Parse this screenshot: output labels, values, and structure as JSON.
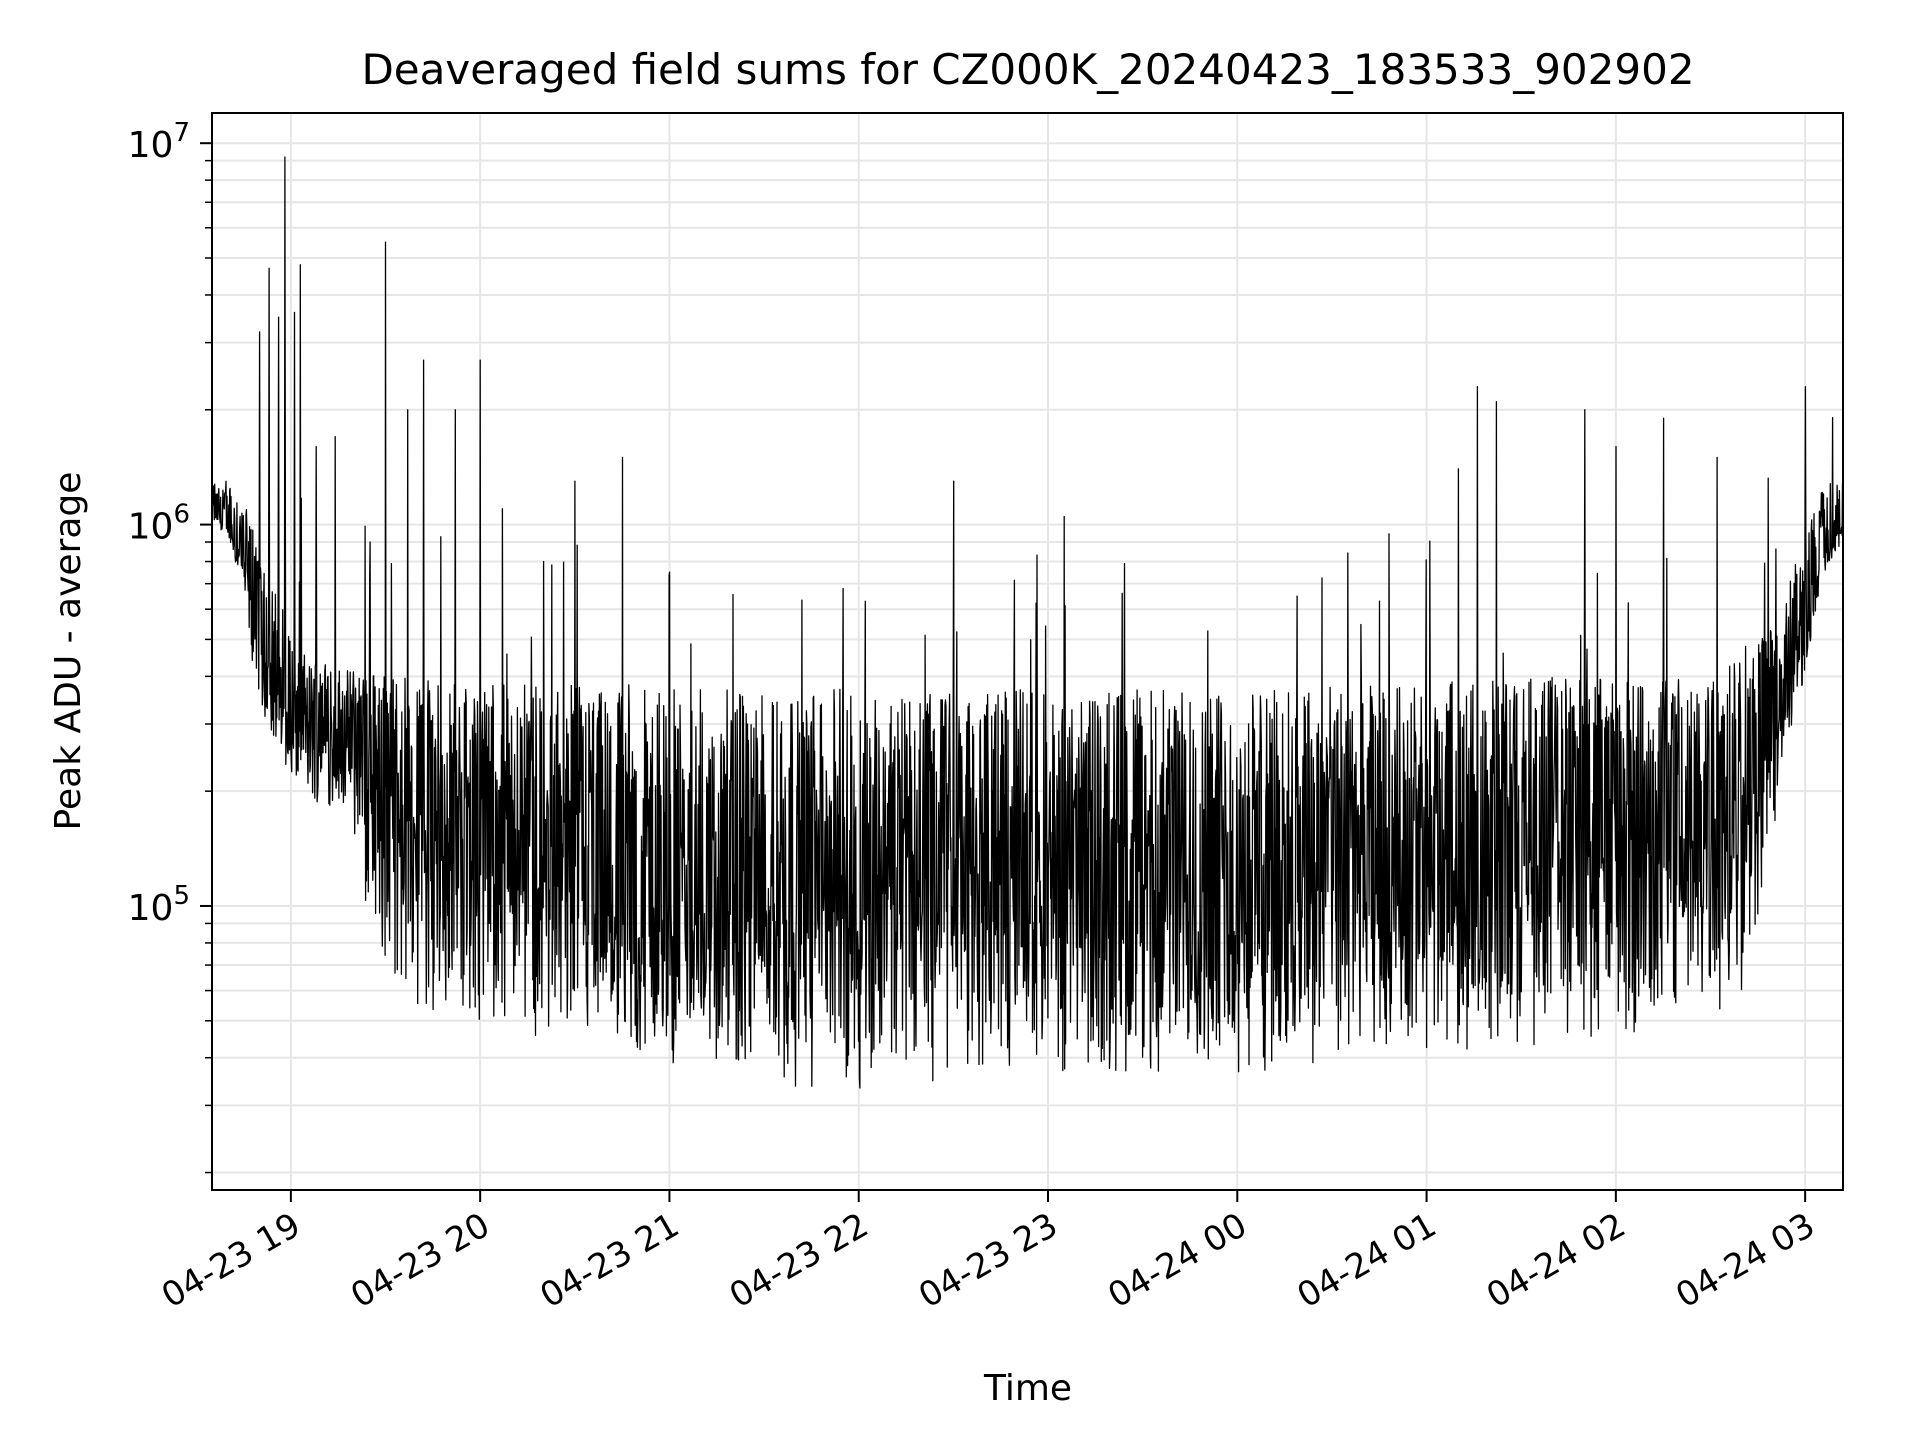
{
  "chart_data": {
    "type": "line",
    "title": "Deaveraged field sums for CZ000K_20240423_183533_902902",
    "xlabel": "Time",
    "ylabel": "Peak ADU - average",
    "y_scale": "log",
    "ylim": [
      18000,
      12000000
    ],
    "xlim": [
      "04-23 18:35",
      "04-24 03:12"
    ],
    "grid": true,
    "line_color": "#000000",
    "x_ticks": [
      {
        "label": "04-23 19",
        "t": "04-23 19:00"
      },
      {
        "label": "04-23 20",
        "t": "04-23 20:00"
      },
      {
        "label": "04-23 21",
        "t": "04-23 21:00"
      },
      {
        "label": "04-23 22",
        "t": "04-23 22:00"
      },
      {
        "label": "04-23 23",
        "t": "04-23 23:00"
      },
      {
        "label": "04-24 00",
        "t": "04-24 00:00"
      },
      {
        "label": "04-24 01",
        "t": "04-24 01:00"
      },
      {
        "label": "04-24 02",
        "t": "04-24 02:00"
      },
      {
        "label": "04-24 03",
        "t": "04-24 03:00"
      }
    ],
    "y_ticks": [
      {
        "base": "10",
        "exp": "5",
        "value": 100000
      },
      {
        "base": "10",
        "exp": "6",
        "value": 1000000
      },
      {
        "base": "10",
        "exp": "7",
        "value": 10000000
      }
    ],
    "series": [
      {
        "x": [
          "04-23 18:35",
          "04-23 18:40",
          "04-23 18:45",
          "04-23 18:48",
          "04-23 18:50",
          "04-23 18:52",
          "04-23 18:55",
          "04-23 18:58",
          "04-23 19:00",
          "04-23 19:05",
          "04-23 19:10",
          "04-23 19:15",
          "04-23 19:20",
          "04-23 19:25",
          "04-23 19:30",
          "04-23 19:35",
          "04-23 19:40",
          "04-23 19:45",
          "04-23 19:50",
          "04-23 20:00",
          "04-23 20:10",
          "04-23 20:15",
          "04-23 20:20",
          "04-23 20:30",
          "04-23 20:40",
          "04-23 20:50",
          "04-23 21:00",
          "04-23 21:10",
          "04-23 21:20",
          "04-23 21:30",
          "04-23 21:40",
          "04-23 21:50",
          "04-23 22:00",
          "04-23 22:15",
          "04-23 22:30",
          "04-23 22:45",
          "04-23 23:00",
          "04-23 23:15",
          "04-23 23:30",
          "04-23 23:45",
          "04-24 00:00",
          "04-24 00:15",
          "04-24 00:30",
          "04-24 00:45",
          "04-24 01:00",
          "04-24 01:15",
          "04-24 01:30",
          "04-24 01:45",
          "04-24 02:00",
          "04-24 02:15",
          "04-24 02:30",
          "04-24 02:40",
          "04-24 02:50",
          "04-24 03:00",
          "04-24 03:05",
          "04-24 03:12"
        ],
        "y": [
          1150000,
          1000000,
          800000,
          600000,
          500000,
          450000,
          400000,
          330000,
          300000,
          280000,
          300000,
          250000,
          270000,
          280000,
          200000,
          180000,
          170000,
          160000,
          150000,
          145000,
          140000,
          130000,
          120000,
          110000,
          90000,
          80000,
          90000,
          100000,
          95000,
          100000,
          110000,
          115000,
          120000,
          125000,
          125000,
          120000,
          120000,
          115000,
          115000,
          110000,
          110000,
          115000,
          115000,
          120000,
          120000,
          130000,
          135000,
          140000,
          140000,
          150000,
          160000,
          200000,
          280000,
          500000,
          800000,
          1000000
        ],
        "y_low": [
          1000000,
          900000,
          700000,
          400000,
          350000,
          300000,
          250000,
          220000,
          200000,
          180000,
          190000,
          170000,
          150000,
          80000,
          60000,
          60000,
          55000,
          50000,
          50000,
          48000,
          47000,
          45000,
          45000,
          42000,
          40000,
          38000,
          37000,
          36000,
          35000,
          34000,
          33000,
          33000,
          33000,
          34000,
          34000,
          35000,
          35000,
          36000,
          35000,
          34000,
          34000,
          35000,
          37000,
          39000,
          40000,
          41000,
          42000,
          43000,
          44000,
          45000,
          48000,
          60000,
          150000,
          400000,
          700000,
          900000
        ],
        "y_high": [
          1300000,
          1300000,
          1200000,
          1000000,
          900000,
          800000,
          700000,
          600000,
          500000,
          470000,
          450000,
          420000,
          420000,
          410000,
          410000,
          400000,
          400000,
          390000,
          390000,
          390000,
          380000,
          380000,
          380000,
          380000,
          380000,
          380000,
          370000,
          370000,
          370000,
          370000,
          370000,
          370000,
          370000,
          370000,
          370000,
          370000,
          370000,
          370000,
          370000,
          370000,
          370000,
          370000,
          375000,
          380000,
          385000,
          390000,
          395000,
          400000,
          405000,
          410000,
          420000,
          450000,
          550000,
          1000000,
          1300000,
          1300000
        ],
        "spikes": [
          {
            "t": "04-23 18:50",
            "v": 3200000
          },
          {
            "t": "04-23 18:53",
            "v": 4700000
          },
          {
            "t": "04-23 18:56",
            "v": 3500000
          },
          {
            "t": "04-23 18:58",
            "v": 9200000
          },
          {
            "t": "04-23 19:01",
            "v": 3600000
          },
          {
            "t": "04-23 19:03",
            "v": 4800000
          },
          {
            "t": "04-23 19:08",
            "v": 1600000
          },
          {
            "t": "04-23 19:14",
            "v": 1700000
          },
          {
            "t": "04-23 19:25",
            "v": 900000
          },
          {
            "t": "04-23 19:30",
            "v": 5500000
          },
          {
            "t": "04-23 19:37",
            "v": 2000000
          },
          {
            "t": "04-23 19:42",
            "v": 2700000
          },
          {
            "t": "04-23 19:52",
            "v": 2000000
          },
          {
            "t": "04-23 20:00",
            "v": 2700000
          },
          {
            "t": "04-23 20:07",
            "v": 1100000
          },
          {
            "t": "04-23 20:20",
            "v": 800000
          },
          {
            "t": "04-23 20:30",
            "v": 1300000
          },
          {
            "t": "04-23 20:45",
            "v": 1500000
          },
          {
            "t": "04-23 21:00",
            "v": 750000
          },
          {
            "t": "04-23 21:55",
            "v": 680000
          },
          {
            "t": "04-23 22:30",
            "v": 1300000
          },
          {
            "t": "04-23 23:05",
            "v": 1050000
          },
          {
            "t": "04-24 00:45",
            "v": 630000
          },
          {
            "t": "04-24 01:10",
            "v": 1400000
          },
          {
            "t": "04-24 01:16",
            "v": 2300000
          },
          {
            "t": "04-24 01:22",
            "v": 2100000
          },
          {
            "t": "04-24 01:50",
            "v": 2000000
          },
          {
            "t": "04-24 02:00",
            "v": 1600000
          },
          {
            "t": "04-24 02:15",
            "v": 1900000
          },
          {
            "t": "04-24 02:32",
            "v": 1500000
          },
          {
            "t": "04-24 03:00",
            "v": 2300000
          }
        ]
      }
    ]
  }
}
